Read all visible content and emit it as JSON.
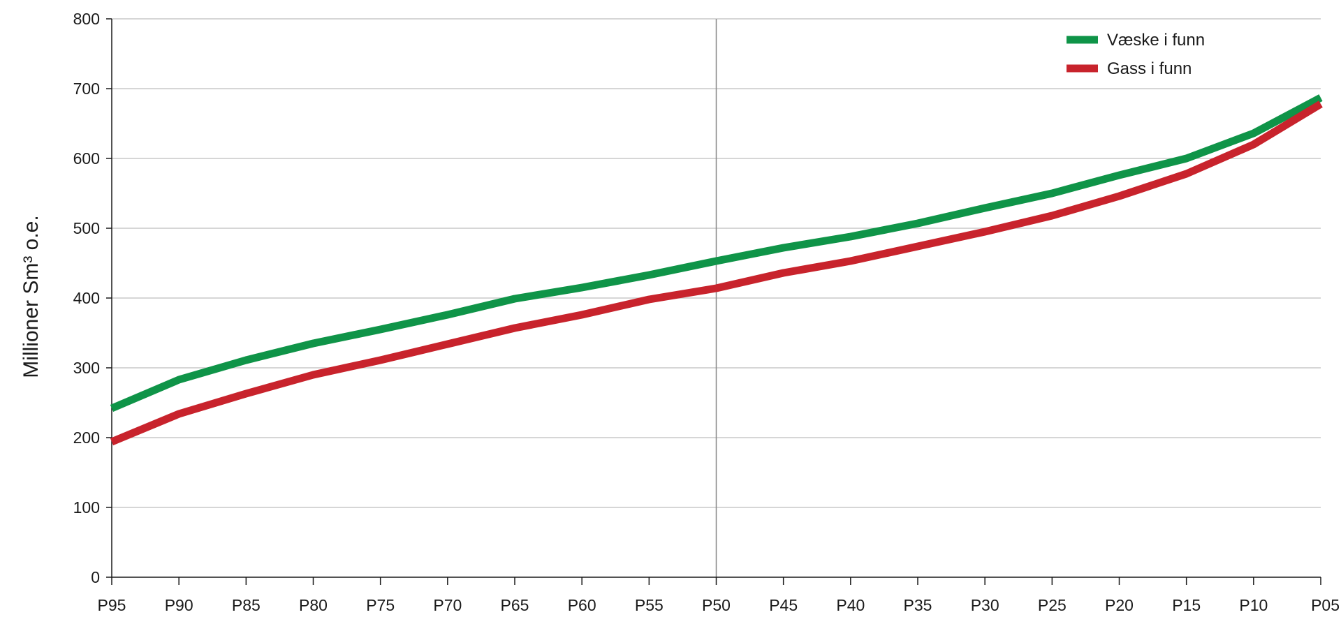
{
  "chart_data": {
    "type": "line",
    "x": [
      "P95",
      "P90",
      "P85",
      "P80",
      "P75",
      "P70",
      "P65",
      "P60",
      "P55",
      "P50",
      "P45",
      "P40",
      "P35",
      "P30",
      "P25",
      "P20",
      "P15",
      "P10",
      "P05"
    ],
    "series": [
      {
        "name": "Væske i funn",
        "color": "#0f9448",
        "values": [
          242,
          283,
          311,
          335,
          355,
          376,
          399,
          415,
          433,
          453,
          472,
          488,
          507,
          529,
          550,
          576,
          600,
          636,
          687
        ]
      },
      {
        "name": "Gass i funn",
        "color": "#c8232c",
        "values": [
          194,
          234,
          263,
          290,
          311,
          334,
          357,
          376,
          398,
          414,
          436,
          453,
          474,
          495,
          518,
          546,
          578,
          620,
          678
        ]
      }
    ],
    "ylabel": "Millioner  Sm³ o.e.",
    "ylim": [
      0,
      800
    ],
    "yticks": [
      0,
      100,
      200,
      300,
      400,
      500,
      600,
      700,
      800
    ],
    "reference_line_x": "P50",
    "grid": true,
    "legend_position": "top-right"
  }
}
